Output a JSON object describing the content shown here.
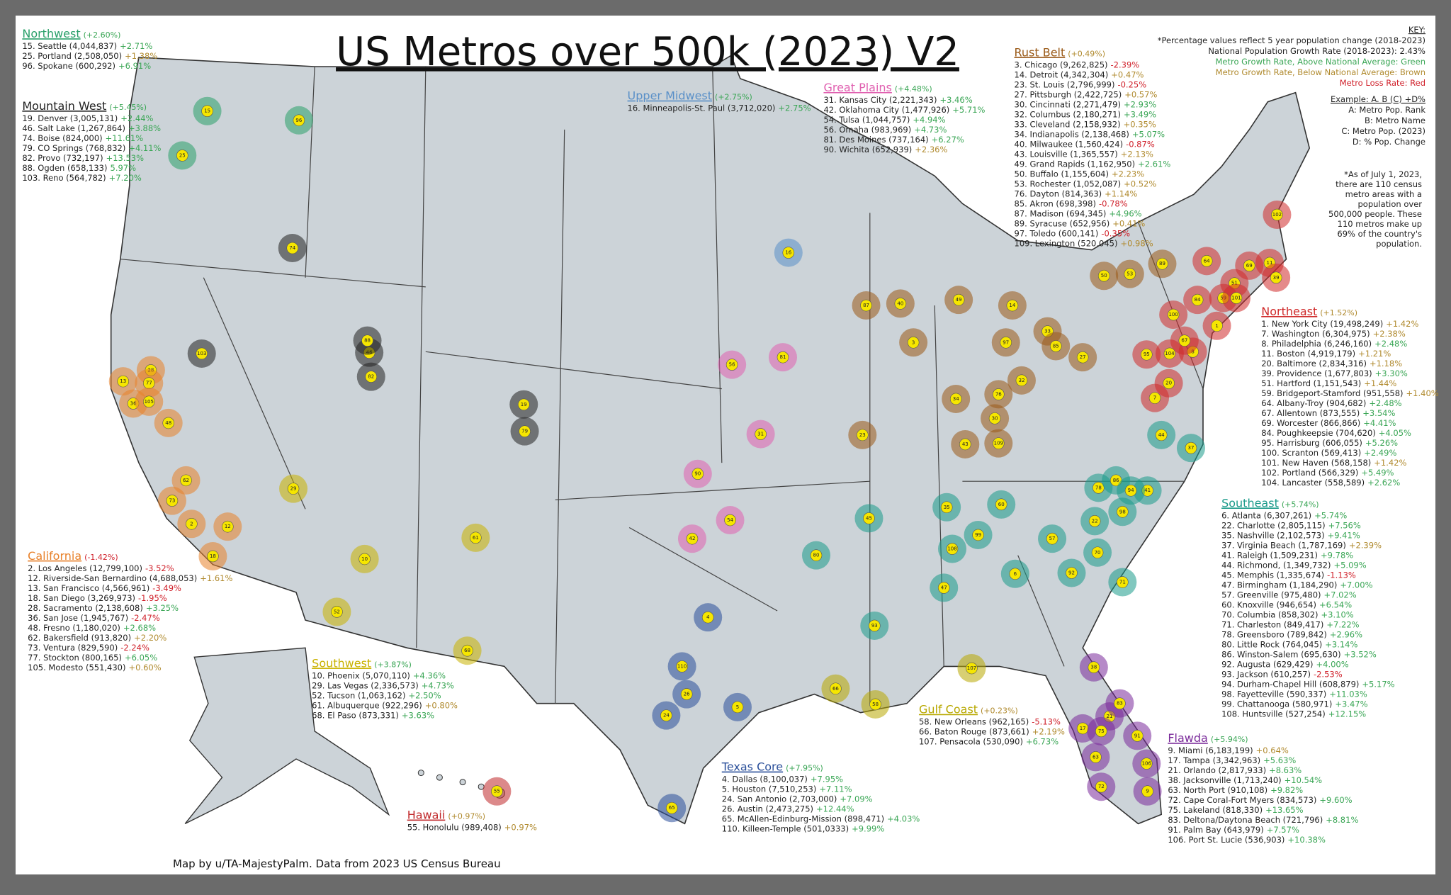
{
  "title": "US Metros over 500k (2023) V2",
  "credit": "Map by u/TA-MajestyPalm. Data from 2023 US Census Bureau",
  "status_colors": {
    "above": "#3aa655",
    "below": "#b08a2e",
    "loss": "#d0202a"
  },
  "key": [
    {
      "text": "KEY:"
    },
    {
      "text": "*Percentage values reflect 5 year population change (2018-2023)"
    },
    {
      "text": "National Population Growth Rate (2018-2023): 2.43%"
    },
    {
      "text": "Metro Growth Rate, Above National Average: Green",
      "color": "#3aa655"
    },
    {
      "text": "Metro Growth Rate, Below National Average: Brown",
      "color": "#b08a2e"
    },
    {
      "text": "Metro Loss Rate: Red",
      "color": "#d0202a"
    },
    {
      "text": "Example: A. B (C) +D%"
    },
    {
      "text": "A: Metro Pop. Rank"
    },
    {
      "text": "B: Metro Name"
    },
    {
      "text": "C: Metro  Pop. (2023)"
    },
    {
      "text": "D: % Pop. Change"
    }
  ],
  "note": [
    "*As of July 1, 2023,",
    "there are 110 census",
    "metro areas with a",
    "population over",
    "500,000 people. These",
    "110 metros make up",
    "69% of the country's",
    "population."
  ],
  "regions": [
    {
      "name": "Northwest",
      "change": "(+2.60%)",
      "status": "above",
      "color": "#2aa06a",
      "metros": [
        {
          "rank": 15,
          "entry": "15. Seattle (4,044,837)",
          "change": "+2.71%",
          "status": "above"
        },
        {
          "rank": 25,
          "entry": "25. Portland (2,508,050)",
          "change": "+1.38%",
          "status": "below"
        },
        {
          "rank": 96,
          "entry": "96. Spokane (600,292)",
          "change": "+6.91%",
          "status": "above"
        }
      ]
    },
    {
      "name": "Mountain West",
      "change": "(+5.45%)",
      "status": "above",
      "color": "#222222",
      "metros": [
        {
          "rank": 19,
          "entry": "19. Denver (3,005,131)",
          "change": "+2.44%",
          "status": "above"
        },
        {
          "rank": 46,
          "entry": "46. Salt Lake (1,267,864)",
          "change": "+3.88%",
          "status": "above"
        },
        {
          "rank": 74,
          "entry": "74. Boise (824,000)",
          "change": "+11.61%",
          "status": "above"
        },
        {
          "rank": 79,
          "entry": "79. CO Springs (768,832)",
          "change": "+4.11%",
          "status": "above"
        },
        {
          "rank": 82,
          "entry": "82. Provo (732,197)",
          "change": "+13.53%",
          "status": "above"
        },
        {
          "rank": 88,
          "entry": "88. Ogden (658,133)",
          "change": "5.97%",
          "status": "above"
        },
        {
          "rank": 103,
          "entry": "103. Reno (564,782)",
          "change": "+7.20%",
          "status": "above"
        }
      ]
    },
    {
      "name": "California",
      "change": "(-1.42%)",
      "status": "loss",
      "color": "#e8812a",
      "metros": [
        {
          "rank": 2,
          "entry": "2. Los Angeles (12,799,100)",
          "change": "-3.52%",
          "status": "loss"
        },
        {
          "rank": 12,
          "entry": "12. Riverside-San Bernardino (4,688,053)",
          "change": "+1.61%",
          "status": "below"
        },
        {
          "rank": 13,
          "entry": "13. San Francisco (4,566,961)",
          "change": "-3.49%",
          "status": "loss"
        },
        {
          "rank": 18,
          "entry": "18. San Diego (3,269,973)",
          "change": "-1.95%",
          "status": "loss"
        },
        {
          "rank": 28,
          "entry": "28. Sacramento (2,138,608)",
          "change": "+3.25%",
          "status": "above"
        },
        {
          "rank": 36,
          "entry": "36. San Jose (1,945,767)",
          "change": "-2.47%",
          "status": "loss"
        },
        {
          "rank": 48,
          "entry": "48. Fresno (1,180,020)",
          "change": "+2.68%",
          "status": "above"
        },
        {
          "rank": 62,
          "entry": "62. Bakersfield (913,820)",
          "change": "+2.20%",
          "status": "below"
        },
        {
          "rank": 73,
          "entry": "73. Ventura (829,590)",
          "change": "-2.24%",
          "status": "loss"
        },
        {
          "rank": 77,
          "entry": "77. Stockton (800,165)",
          "change": "+6.05%",
          "status": "above"
        },
        {
          "rank": 105,
          "entry": "105. Modesto (551,430)",
          "change": "+0.60%",
          "status": "below"
        }
      ]
    },
    {
      "name": "Southwest",
      "change": "(+3.87%)",
      "status": "above",
      "color": "#c9b200",
      "metros": [
        {
          "rank": 10,
          "entry": "10. Phoenix (5,070,110)",
          "change": "+4.36%",
          "status": "above"
        },
        {
          "rank": 29,
          "entry": "29. Las Vegas (2,336,573)",
          "change": "+4.73%",
          "status": "above"
        },
        {
          "rank": 52,
          "entry": "52. Tucson (1,063,162)",
          "change": "+2.50%",
          "status": "above"
        },
        {
          "rank": 61,
          "entry": "61. Albuquerque (922,296)",
          "change": "+0.80%",
          "status": "below"
        },
        {
          "rank": 68,
          "entry": "68. El Paso (873,331)",
          "change": "+3.63%",
          "status": "above"
        }
      ]
    },
    {
      "name": "Hawaii",
      "change": "(+0.97%)",
      "status": "below",
      "color": "#c0282a",
      "metros": [
        {
          "rank": 55,
          "entry": "55. Honolulu (989,408)",
          "change": "+0.97%",
          "status": "below"
        }
      ]
    },
    {
      "name": "Texas Core",
      "change": "(+7.95%)",
      "status": "above",
      "color": "#2a4f9a",
      "metros": [
        {
          "rank": 4,
          "entry": "4. Dallas (8,100,037)",
          "change": "+7.95%",
          "status": "above"
        },
        {
          "rank": 5,
          "entry": "5. Houston (7,510,253)",
          "change": "+7.11%",
          "status": "above"
        },
        {
          "rank": 24,
          "entry": "24. San Antonio (2,703,000)",
          "change": "+7.09%",
          "status": "above"
        },
        {
          "rank": 26,
          "entry": "26. Austin (2,473,275)",
          "change": "+12.44%",
          "status": "above"
        },
        {
          "rank": 65,
          "entry": "65. McAllen-Edinburg-Mission (898,471)",
          "change": "+4.03%",
          "status": "above"
        },
        {
          "rank": 110,
          "entry": "110. Killeen-Temple (501,0333)",
          "change": "+9.99%",
          "status": "above"
        }
      ]
    },
    {
      "name": "Great Plains",
      "change": "(+4.48%)",
      "status": "above",
      "color": "#e060b0",
      "metros": [
        {
          "rank": 31,
          "entry": "31. Kansas City (2,221,343)",
          "change": "+3.46%",
          "status": "above"
        },
        {
          "rank": 42,
          "entry": "42. Oklahoma City (1,477,926)",
          "change": "+5.71%",
          "status": "above"
        },
        {
          "rank": 54,
          "entry": "54. Tulsa (1,044,757)",
          "change": "+4.94%",
          "status": "above"
        },
        {
          "rank": 56,
          "entry": "56. Omaha (983,969)",
          "change": "+4.73%",
          "status": "above"
        },
        {
          "rank": 81,
          "entry": "81. Des Moines (737,164)",
          "change": "+6.27%",
          "status": "above"
        },
        {
          "rank": 90,
          "entry": "90. Wichita (652,939)",
          "change": "+2.36%",
          "status": "below"
        }
      ]
    },
    {
      "name": "Upper Midwest",
      "change": "(+2.75%)",
      "status": "above",
      "color": "#5a90c8",
      "metros": [
        {
          "rank": 16,
          "entry": "16. Minneapolis-St. Paul (3,712,020)",
          "change": "+2.75%",
          "status": "above"
        }
      ]
    },
    {
      "name": "Rust Belt",
      "change": "(+0.49%)",
      "status": "below",
      "color": "#9a5a18",
      "metros": [
        {
          "rank": 3,
          "entry": "3. Chicago (9,262,825)",
          "change": "-2.39%",
          "status": "loss"
        },
        {
          "rank": 14,
          "entry": "14. Detroit (4,342,304)",
          "change": "+0.47%",
          "status": "below"
        },
        {
          "rank": 23,
          "entry": "23. St. Louis (2,796,999)",
          "change": "-0.25%",
          "status": "loss"
        },
        {
          "rank": 27,
          "entry": "27. Pittsburgh (2,422,725)",
          "change": "+0.57%",
          "status": "below"
        },
        {
          "rank": 30,
          "entry": "30. Cincinnati (2,271,479)",
          "change": "+2.93%",
          "status": "above"
        },
        {
          "rank": 32,
          "entry": "32. Columbus (2,180,271)",
          "change": "+3.49%",
          "status": "above"
        },
        {
          "rank": 33,
          "entry": "33. Cleveland (2,158,932)",
          "change": "+0.35%",
          "status": "below"
        },
        {
          "rank": 34,
          "entry": "34. Indianapolis (2,138,468)",
          "change": "+5.07%",
          "status": "above"
        },
        {
          "rank": 40,
          "entry": "40. Milwaukee (1,560,424)",
          "change": "-0.87%",
          "status": "loss"
        },
        {
          "rank": 43,
          "entry": "43. Louisville (1,365,557)",
          "change": "+2.13%",
          "status": "below"
        },
        {
          "rank": 49,
          "entry": "49. Grand Rapids (1,162,950)",
          "change": "+2.61%",
          "status": "above"
        },
        {
          "rank": 50,
          "entry": "50. Buffalo (1,155,604)",
          "change": "+2.23%",
          "status": "below"
        },
        {
          "rank": 53,
          "entry": "53. Rochester (1,052,087)",
          "change": "+0.52%",
          "status": "below"
        },
        {
          "rank": 76,
          "entry": "76. Dayton (814,363)",
          "change": "+1.14%",
          "status": "below"
        },
        {
          "rank": 85,
          "entry": "85. Akron (698,398)",
          "change": "-0.78%",
          "status": "loss"
        },
        {
          "rank": 87,
          "entry": "87. Madison (694,345)",
          "change": "+4.96%",
          "status": "above"
        },
        {
          "rank": 89,
          "entry": "89. Syracuse (652,956)",
          "change": "+0.41%",
          "status": "below"
        },
        {
          "rank": 97,
          "entry": "97. Toledo (600,141)",
          "change": "-0.35%",
          "status": "loss"
        },
        {
          "rank": 109,
          "entry": "109. Lexington (520,045)",
          "change": "+0.98%",
          "status": "below"
        }
      ]
    },
    {
      "name": "Northeast",
      "change": "(+1.52%)",
      "status": "below",
      "color": "#d02a2a",
      "metros": [
        {
          "rank": 1,
          "entry": "1. New York City (19,498,249)",
          "change": "+1.42%",
          "status": "below"
        },
        {
          "rank": 7,
          "entry": "7. Washington (6,304,975)",
          "change": "+2.38%",
          "status": "below"
        },
        {
          "rank": 8,
          "entry": "8. Philadelphia (6,246,160)",
          "change": "+2.48%",
          "status": "above"
        },
        {
          "rank": 11,
          "entry": "11. Boston (4,919,179)",
          "change": "+1.21%",
          "status": "below"
        },
        {
          "rank": 20,
          "entry": "20. Baltimore (2,834,316)",
          "change": "+1.18%",
          "status": "below"
        },
        {
          "rank": 39,
          "entry": "39. Providence (1,677,803)",
          "change": "+3.30%",
          "status": "above"
        },
        {
          "rank": 51,
          "entry": "51. Hartford (1,151,543)",
          "change": "+1.44%",
          "status": "below"
        },
        {
          "rank": 59,
          "entry": "59. Bridgeport-Stamford (951,558)",
          "change": "+1.40%",
          "status": "below"
        },
        {
          "rank": 64,
          "entry": "64. Albany-Troy (904,682)",
          "change": "+2.48%",
          "status": "above"
        },
        {
          "rank": 67,
          "entry": "67. Allentown (873,555)",
          "change": "+3.54%",
          "status": "above"
        },
        {
          "rank": 69,
          "entry": "69. Worcester (866,866)",
          "change": "+4.41%",
          "status": "above"
        },
        {
          "rank": 84,
          "entry": "84. Poughkeepsie (704,620)",
          "change": "+4.05%",
          "status": "above"
        },
        {
          "rank": 95,
          "entry": "95. Harrisburg (606,055)",
          "change": "+5.26%",
          "status": "above"
        },
        {
          "rank": 100,
          "entry": "100. Scranton (569,413)",
          "change": "+2.49%",
          "status": "above"
        },
        {
          "rank": 101,
          "entry": "101. New Haven (568,158)",
          "change": "+1.42%",
          "status": "below"
        },
        {
          "rank": 102,
          "entry": "102. Portland (566,329)",
          "change": "+5.49%",
          "status": "above"
        },
        {
          "rank": 104,
          "entry": "104. Lancaster (558,589)",
          "change": "+2.62%",
          "status": "above"
        }
      ]
    },
    {
      "name": "Southeast",
      "change": "(+5.74%)",
      "status": "above",
      "color": "#1a9a8a",
      "metros": [
        {
          "rank": 6,
          "entry": "6. Atlanta (6,307,261)",
          "change": "+5.74%",
          "status": "above"
        },
        {
          "rank": 22,
          "entry": "22. Charlotte (2,805,115)",
          "change": "+7.56%",
          "status": "above"
        },
        {
          "rank": 35,
          "entry": "35. Nashville (2,102,573)",
          "change": "+9.41%",
          "status": "above"
        },
        {
          "rank": 37,
          "entry": "37. Virginia Beach (1,787,169)",
          "change": "+2.39%",
          "status": "below"
        },
        {
          "rank": 41,
          "entry": "41. Raleigh (1,509,231)",
          "change": "+9.78%",
          "status": "above"
        },
        {
          "rank": 44,
          "entry": "44. Richmond, (1,349,732)",
          "change": "+5.09%",
          "status": "above"
        },
        {
          "rank": 45,
          "entry": "45. Memphis (1,335,674)",
          "change": "-1.13%",
          "status": "loss"
        },
        {
          "rank": 47,
          "entry": "47. Birmingham (1,184,290)",
          "change": "+7.00%",
          "status": "above"
        },
        {
          "rank": 57,
          "entry": "57. Greenville (975,480)",
          "change": "+7.02%",
          "status": "above"
        },
        {
          "rank": 60,
          "entry": "60. Knoxville (946,654)",
          "change": "+6.54%",
          "status": "above"
        },
        {
          "rank": 70,
          "entry": "70. Columbia (858,302)",
          "change": "+3.10%",
          "status": "above"
        },
        {
          "rank": 71,
          "entry": "71. Charleston (849,417)",
          "change": "+7.22%",
          "status": "above"
        },
        {
          "rank": 78,
          "entry": "78. Greensboro (789,842)",
          "change": "+2.96%",
          "status": "above"
        },
        {
          "rank": 80,
          "entry": "80. Little Rock (764,045)",
          "change": "+3.14%",
          "status": "above"
        },
        {
          "rank": 86,
          "entry": "86. Winston-Salem (695,630)",
          "change": "+3.52%",
          "status": "above"
        },
        {
          "rank": 92,
          "entry": "92. Augusta (629,429)",
          "change": "+4.00%",
          "status": "above"
        },
        {
          "rank": 93,
          "entry": "93. Jackson (610,257)",
          "change": "-2.53%",
          "status": "loss"
        },
        {
          "rank": 94,
          "entry": "94. Durham-Chapel Hill (608,879)",
          "change": "+5.17%",
          "status": "above"
        },
        {
          "rank": 98,
          "entry": "98. Fayetteville (590,337)",
          "change": "+11.03%",
          "status": "above"
        },
        {
          "rank": 99,
          "entry": "99. Chattanooga (580,971)",
          "change": "+3.47%",
          "status": "above"
        },
        {
          "rank": 108,
          "entry": "108. Huntsville (527,254)",
          "change": "+12.15%",
          "status": "above"
        }
      ]
    },
    {
      "name": "Gulf Coast",
      "change": "(+0.23%)",
      "status": "below",
      "color": "#b8a800",
      "metros": [
        {
          "rank": 58,
          "entry": "58. New Orleans (962,165)",
          "change": "-5.13%",
          "status": "loss"
        },
        {
          "rank": 66,
          "entry": "66. Baton Rouge (873,661)",
          "change": "+2.19%",
          "status": "below"
        },
        {
          "rank": 107,
          "entry": "107. Pensacola (530,090)",
          "change": "+6.73%",
          "status": "above"
        }
      ]
    },
    {
      "name": "Flawda",
      "change": "(+5.94%)",
      "status": "above",
      "color": "#7a2a9a",
      "metros": [
        {
          "rank": 9,
          "entry": "9. Miami (6,183,199)",
          "change": "+0.64%",
          "status": "below"
        },
        {
          "rank": 17,
          "entry": "17. Tampa (3,342,963)",
          "change": "+5.63%",
          "status": "above"
        },
        {
          "rank": 21,
          "entry": "21. Orlando (2,817,933)",
          "change": "+8.63%",
          "status": "above"
        },
        {
          "rank": 38,
          "entry": "38. Jacksonville (1,713,240)",
          "change": "+10.54%",
          "status": "above"
        },
        {
          "rank": 63,
          "entry": "63. North Port (910,108)",
          "change": "+9.82%",
          "status": "above"
        },
        {
          "rank": 72,
          "entry": "72. Cape Coral-Fort Myers (834,573)",
          "change": "+9.60%",
          "status": "above"
        },
        {
          "rank": 75,
          "entry": "75. Lakeland (818,330)",
          "change": "+13.65%",
          "status": "above"
        },
        {
          "rank": 83,
          "entry": "83. Deltona/Daytona Beach (721,796)",
          "change": "+8.81%",
          "status": "above"
        },
        {
          "rank": 91,
          "entry": "91. Palm Bay (643,979)",
          "change": "+7.57%",
          "status": "above"
        },
        {
          "rank": 106,
          "entry": "106. Port St. Lucie (536,903)",
          "change": "+10.38%",
          "status": "above"
        }
      ]
    }
  ]
}
